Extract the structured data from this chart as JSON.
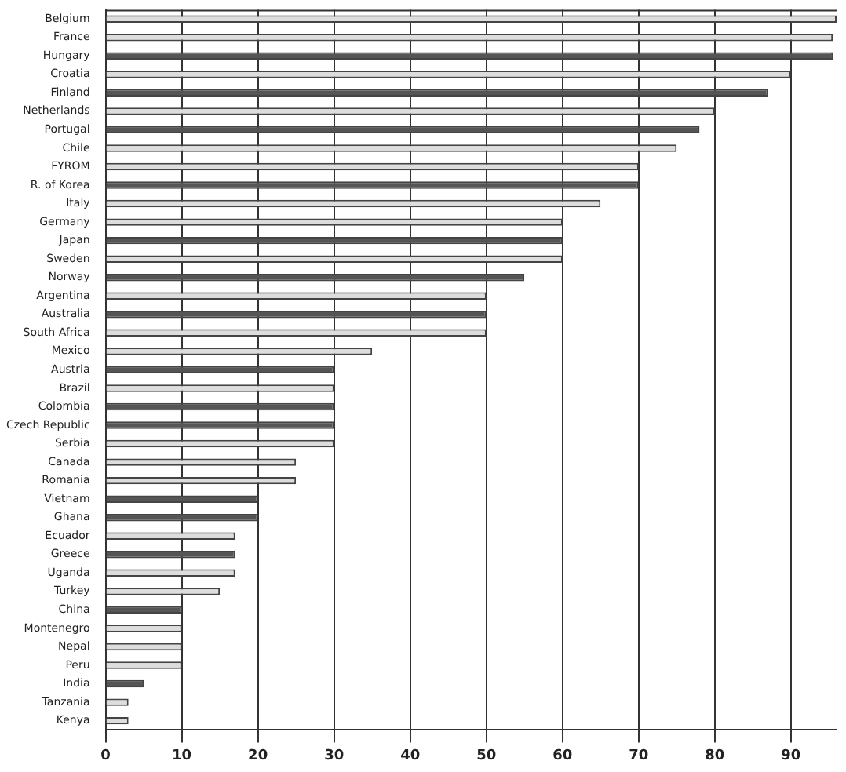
{
  "chart_data": {
    "type": "bar",
    "orientation": "horizontal",
    "categories": [
      "Belgium",
      "France",
      "Hungary",
      "Croatia",
      "Finland",
      "Netherlands",
      "Portugal",
      "Chile",
      "FYROM",
      "R. of Korea",
      "Italy",
      "Germany",
      "Japan",
      "Sweden",
      "Norway",
      "Argentina",
      "Australia",
      "South Africa",
      "Mexico",
      "Austria",
      "Brazil",
      "Colombia",
      "Czech Republic",
      "Serbia",
      "Canada",
      "Romania",
      "Vietnam",
      "Ghana",
      "Ecuador",
      "Greece",
      "Uganda",
      "Turkey",
      "China",
      "Montenegro",
      "Nepal",
      "Peru",
      "India",
      "Tanzania",
      "Kenya"
    ],
    "values": [
      96,
      95.5,
      95.5,
      90,
      87,
      80,
      78,
      75,
      70,
      70,
      65,
      60,
      60,
      60,
      55,
      50,
      50,
      50,
      35,
      30,
      30,
      30,
      30,
      30,
      25,
      25,
      20,
      20,
      17,
      17,
      17,
      15,
      10,
      10,
      10,
      10,
      5,
      3,
      3
    ],
    "colors": [
      "#dddddd",
      "#dddddd",
      "#555555",
      "#dddddd",
      "#555555",
      "#dddddd",
      "#555555",
      "#dddddd",
      "#dddddd",
      "#555555",
      "#dddddd",
      "#dddddd",
      "#555555",
      "#dddddd",
      "#555555",
      "#dddddd",
      "#555555",
      "#dddddd",
      "#dddddd",
      "#555555",
      "#dddddd",
      "#555555",
      "#555555",
      "#dddddd",
      "#dddddd",
      "#dddddd",
      "#555555",
      "#555555",
      "#dddddd",
      "#555555",
      "#dddddd",
      "#dddddd",
      "#555555",
      "#dddddd",
      "#dddddd",
      "#dddddd",
      "#555555",
      "#dddddd",
      "#dddddd"
    ],
    "xlim": [
      0,
      96
    ],
    "xticks": [
      0,
      10,
      20,
      30,
      40,
      50,
      60,
      70,
      80,
      90
    ],
    "grid": "x"
  }
}
